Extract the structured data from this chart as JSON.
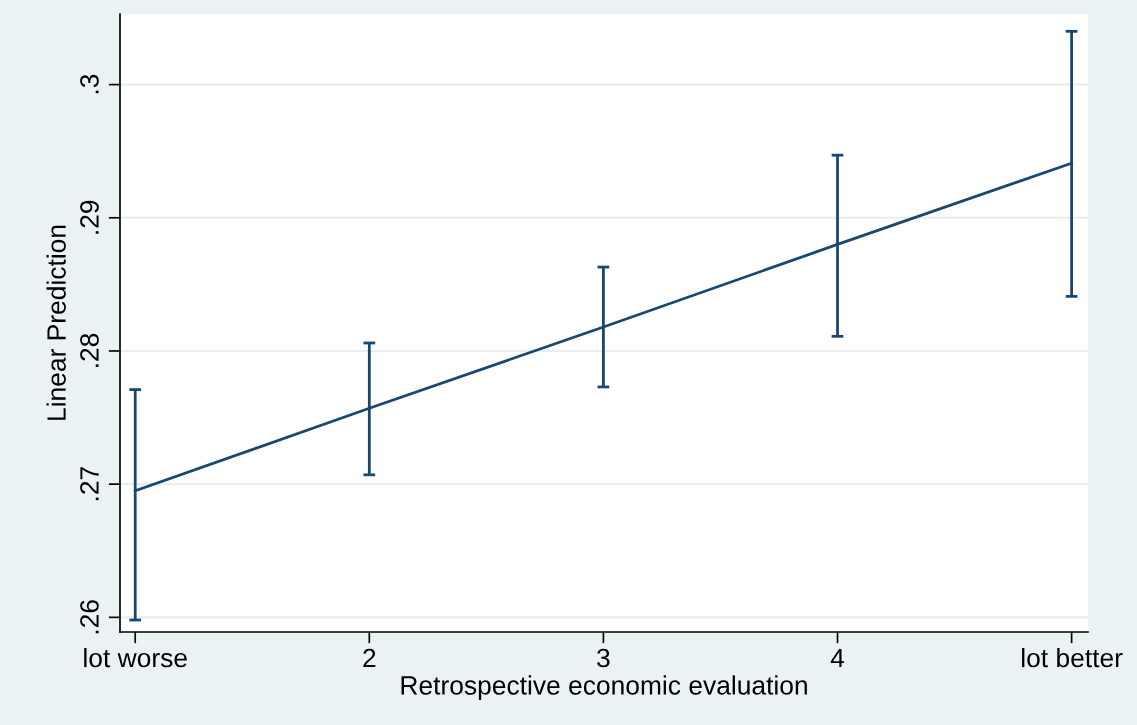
{
  "chart_data": {
    "type": "line",
    "xlabel": "Retrospective economic evaluation",
    "ylabel": "Linear Prediction",
    "categories": [
      "lot worse",
      "2",
      "3",
      "4",
      "lot better"
    ],
    "series": [
      {
        "color": "#1a476f",
        "values": [
          0.2695,
          0.2757,
          0.2818,
          0.288,
          0.2941
        ],
        "errors": [
          [
            0.2598,
            0.2771
          ],
          [
            0.2707,
            0.2806
          ],
          [
            0.2773,
            0.2863
          ],
          [
            0.2811,
            0.2947
          ],
          [
            0.2841,
            0.304
          ]
        ]
      }
    ],
    "ylim": [
      0.2589,
      0.3053
    ],
    "yticks": [
      {
        "value": 0.26,
        "label": ".26"
      },
      {
        "value": 0.27,
        "label": ".27"
      },
      {
        "value": 0.28,
        "label": ".28"
      },
      {
        "value": 0.29,
        "label": ".29"
      },
      {
        "value": 0.3,
        "label": ".3"
      }
    ],
    "grid": "y",
    "marker": "none",
    "line_style": "solid"
  }
}
